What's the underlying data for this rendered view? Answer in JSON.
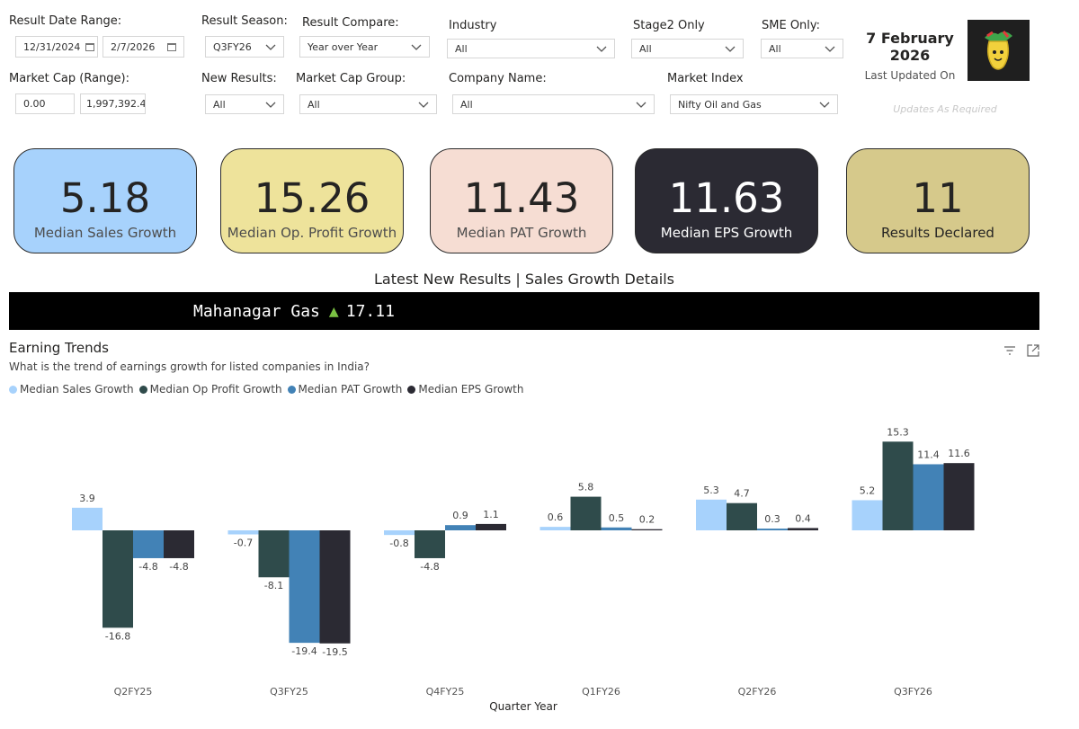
{
  "filters": {
    "result_date_range": {
      "label": "Result Date Range:",
      "start": "12/31/2024",
      "end": "2/7/2026"
    },
    "result_season": {
      "label": "Result Season:",
      "value": "Q3FY26"
    },
    "result_compare": {
      "label": "Result Compare:",
      "value": "Year over Year"
    },
    "industry": {
      "label": "Industry",
      "value": "All"
    },
    "stage2_only": {
      "label": "Stage2 Only",
      "value": "All"
    },
    "sme_only": {
      "label": "SME Only:",
      "value": "All"
    },
    "market_cap_range": {
      "label": "Market Cap (Range):",
      "min": "0.00",
      "max": "1,997,392.41"
    },
    "new_results": {
      "label": "New Results:",
      "value": "All"
    },
    "market_cap_group": {
      "label": "Market Cap Group:",
      "value": "All"
    },
    "company_name": {
      "label": "Company Name:",
      "value": "All"
    },
    "market_index": {
      "label": "Market Index",
      "value": "Nifty Oil and Gas"
    }
  },
  "update_info": {
    "date_line1": "7 February",
    "date_line2": "2026",
    "last_updated_label": "Last Updated On",
    "note": "Updates As Required"
  },
  "kpis": [
    {
      "value": "5.18",
      "label": "Median Sales Growth",
      "bg": "#a7d2fc",
      "fg": "#252423",
      "lfg": "#4d4d4d"
    },
    {
      "value": "15.26",
      "label": "Median Op. Profit Growth",
      "bg": "#eee39b",
      "fg": "#252423",
      "lfg": "#4d4d4d"
    },
    {
      "value": "11.43",
      "label": "Median PAT Growth",
      "bg": "#f6ddd3",
      "fg": "#252423",
      "lfg": "#4d4d4d"
    },
    {
      "value": "11.63",
      "label": "Median EPS Growth",
      "bg": "#2b2a33",
      "fg": "#ffffff",
      "lfg": "#ffffff"
    },
    {
      "value": "11",
      "label": "Results Declared",
      "bg": "#d6c98b",
      "fg": "#252423",
      "lfg": "#252423"
    }
  ],
  "section_title": "Latest New Results | Sales Growth Details",
  "ticker": {
    "company": "Mahanagar Gas",
    "arrow": "▲",
    "value": "17.11"
  },
  "chart": {
    "title": "Earning Trends",
    "subtitle": "What is the trend of earnings growth for listed companies in India?"
  },
  "chart_data": {
    "type": "bar",
    "title": "Earning Trends",
    "xlabel": "Quarter Year",
    "ylabel": "",
    "categories": [
      "Q2FY25",
      "Q3FY25",
      "Q4FY25",
      "Q1FY26",
      "Q2FY26",
      "Q3FY26"
    ],
    "series": [
      {
        "name": "Median Sales Growth",
        "color": "#a7d2fc",
        "values": [
          3.9,
          -0.7,
          -0.8,
          0.6,
          5.3,
          5.2
        ]
      },
      {
        "name": "Median Op Profit Growth",
        "color": "#2f4b4b",
        "values": [
          -16.8,
          -8.1,
          -4.8,
          5.8,
          4.7,
          15.3
        ]
      },
      {
        "name": "Median PAT Growth",
        "color": "#4282b6",
        "values": [
          -4.8,
          -19.4,
          0.9,
          0.5,
          0.3,
          11.4
        ]
      },
      {
        "name": "Median EPS Growth",
        "color": "#2b2a33",
        "values": [
          -4.8,
          -19.5,
          1.1,
          0.2,
          0.4,
          11.6
        ]
      }
    ],
    "ylim": [
      -20,
      18
    ]
  }
}
